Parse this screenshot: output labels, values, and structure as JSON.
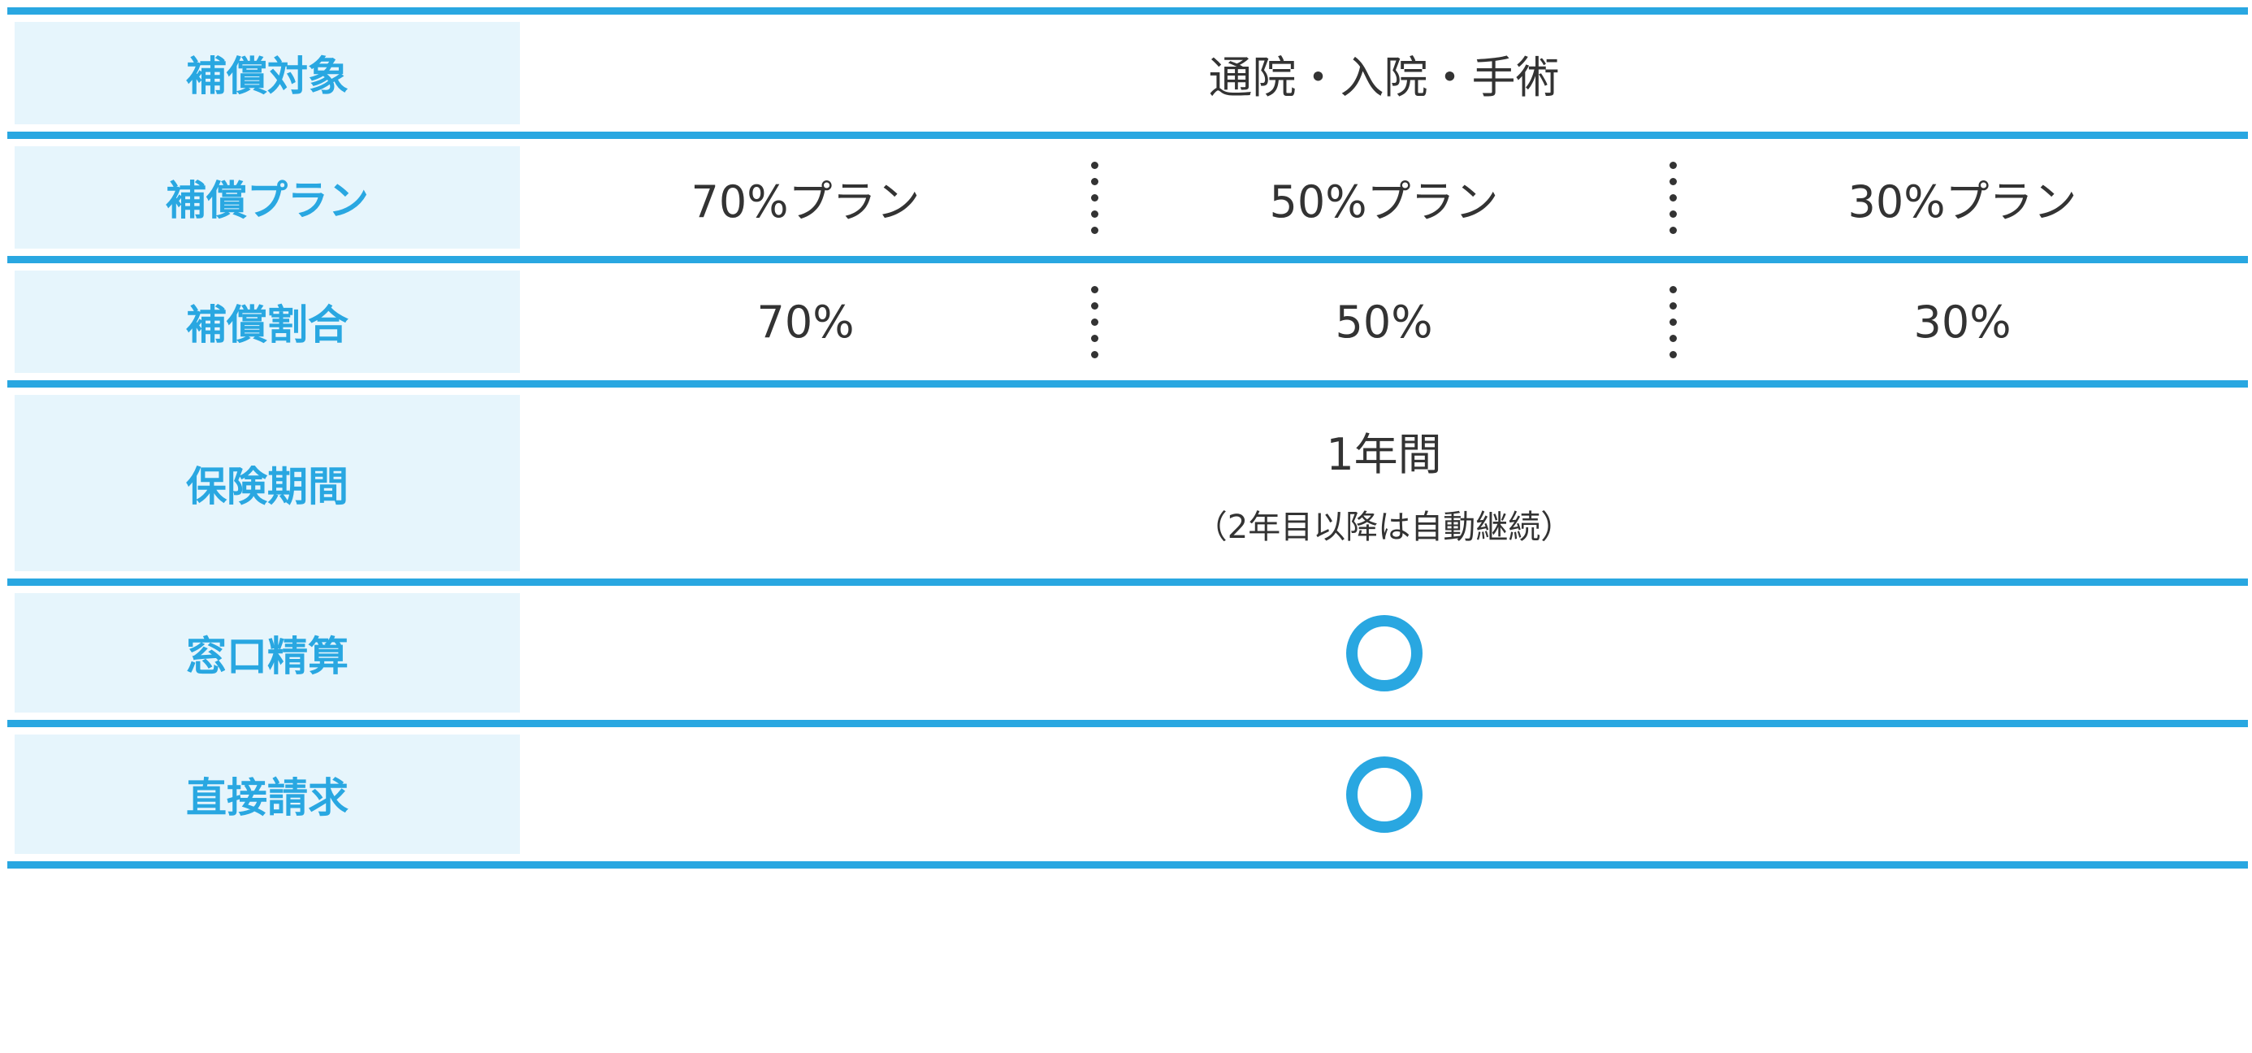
{
  "rows": [
    {
      "label": "補償対象",
      "value": "通院・入院・手術"
    },
    {
      "label": "補償プラン",
      "values": [
        "70%プラン",
        "50%プラン",
        "30%プラン"
      ]
    },
    {
      "label": "補償割合",
      "values": [
        "70%",
        "50%",
        "30%"
      ]
    },
    {
      "label": "保険期間",
      "value": "1年間",
      "note": "（2年目以降は自動継続）"
    },
    {
      "label": "窓口精算",
      "mark": "circle-icon"
    },
    {
      "label": "直接請求",
      "mark": "circle-icon"
    }
  ],
  "colors": {
    "accent": "#29a7e1",
    "label_bg": "#e6f5fc",
    "text": "#333333"
  }
}
